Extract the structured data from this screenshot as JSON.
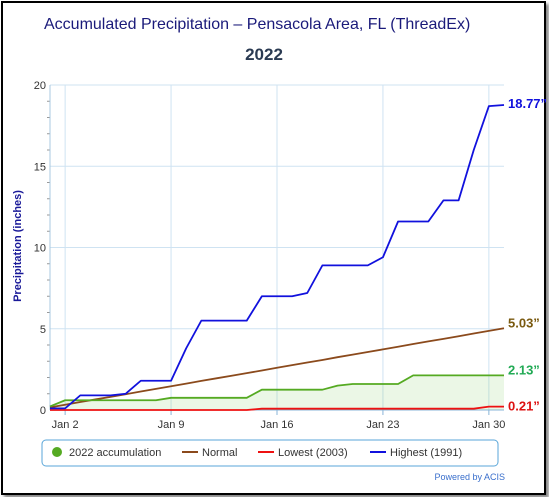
{
  "title": "Accumulated Precipitation – Pensacola Area, FL (ThreadEx)",
  "subtitle": "2022",
  "credits": "Powered by ACIS",
  "chart_data": {
    "type": "line",
    "ylabel": "Precipitation (inches)",
    "xlabel": "",
    "ylim": [
      0,
      20
    ],
    "yticks": [
      0,
      5,
      10,
      15,
      20
    ],
    "x": [
      1,
      2,
      3,
      4,
      5,
      6,
      7,
      8,
      9,
      10,
      11,
      12,
      13,
      14,
      15,
      16,
      17,
      18,
      19,
      20,
      21,
      22,
      23,
      24,
      25,
      26,
      27,
      28,
      29,
      30,
      31
    ],
    "xticks": [
      {
        "day": 2,
        "label": "Jan 2"
      },
      {
        "day": 9,
        "label": "Jan 9"
      },
      {
        "day": 16,
        "label": "Jan 16"
      },
      {
        "day": 23,
        "label": "Jan 23"
      },
      {
        "day": 30,
        "label": "Jan 30"
      }
    ],
    "grid": true,
    "legend_position": "bottom",
    "series": [
      {
        "name": "2022 accumulation",
        "color": "#55aa22",
        "marker": "circle",
        "fill": true,
        "values": [
          0.22,
          0.6,
          0.6,
          0.6,
          0.6,
          0.6,
          0.6,
          0.6,
          0.75,
          0.75,
          0.75,
          0.75,
          0.75,
          0.75,
          1.25,
          1.25,
          1.25,
          1.25,
          1.25,
          1.5,
          1.6,
          1.6,
          1.6,
          1.6,
          2.13,
          2.13,
          2.13,
          2.13,
          2.13,
          2.13,
          2.13
        ]
      },
      {
        "name": "Normal",
        "color": "#8b4a1c",
        "values": [
          0.16,
          0.32,
          0.49,
          0.65,
          0.81,
          0.97,
          1.14,
          1.3,
          1.46,
          1.62,
          1.79,
          1.95,
          2.11,
          2.27,
          2.43,
          2.6,
          2.76,
          2.92,
          3.08,
          3.25,
          3.41,
          3.57,
          3.73,
          3.89,
          4.06,
          4.22,
          4.38,
          4.54,
          4.71,
          4.87,
          5.03
        ]
      },
      {
        "name": "Lowest (2003)",
        "color": "#ee1111",
        "values": [
          0,
          0,
          0,
          0,
          0,
          0,
          0,
          0,
          0,
          0,
          0,
          0,
          0,
          0,
          0.08,
          0.08,
          0.08,
          0.08,
          0.08,
          0.08,
          0.08,
          0.08,
          0.08,
          0.08,
          0.08,
          0.08,
          0.08,
          0.08,
          0.08,
          0.21,
          0.21
        ]
      },
      {
        "name": "Highest (1991)",
        "color": "#1111dd",
        "values": [
          0.1,
          0.1,
          0.9,
          0.9,
          0.9,
          1.0,
          1.8,
          1.8,
          1.8,
          3.8,
          5.5,
          5.5,
          5.5,
          5.5,
          7.0,
          7.0,
          7.0,
          7.2,
          8.9,
          8.9,
          8.9,
          8.9,
          9.4,
          11.6,
          11.6,
          11.6,
          12.9,
          12.9,
          16.0,
          18.7,
          18.77
        ]
      }
    ],
    "end_labels": [
      {
        "text": "18.77”",
        "value": 18.77,
        "color": "#1111dd"
      },
      {
        "text": "5.03”",
        "value": 5.03,
        "color": "#7a5a10"
      },
      {
        "text": "2.13”",
        "value": 2.13,
        "color": "#22aa55"
      },
      {
        "text": "0.21”",
        "value": 0.21,
        "color": "#dd1111"
      }
    ]
  }
}
